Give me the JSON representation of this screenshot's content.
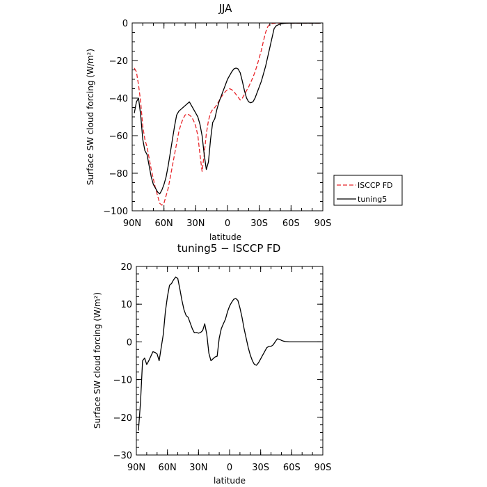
{
  "chart_data": [
    {
      "type": "line",
      "title": "JJA",
      "xlabel": "latitude",
      "ylabel": "Surface SW cloud forcing (W/m²)",
      "xlim": [
        90,
        -90
      ],
      "ylim": [
        -100,
        0
      ],
      "x_ticks": [
        90,
        60,
        30,
        0,
        -30,
        -60,
        -90
      ],
      "x_tick_labels": [
        "90N",
        "60N",
        "30N",
        "0",
        "30S",
        "60S",
        "90S"
      ],
      "y_ticks": [
        0,
        -20,
        -40,
        -60,
        -80,
        -100
      ],
      "y_tick_labels": [
        "0",
        "−20",
        "−40",
        "−60",
        "−80",
        "−100"
      ],
      "legend_position": "right",
      "series": [
        {
          "name": "ISCCP FD",
          "color": "#e8262b",
          "dash": "dashed",
          "x": [
            88,
            86,
            84,
            82,
            80,
            78,
            76,
            74,
            72,
            70,
            68,
            66,
            64,
            62,
            60,
            58,
            56,
            54,
            52,
            50,
            48,
            46,
            44,
            42,
            40,
            38,
            36,
            34,
            32,
            30,
            28,
            26,
            24,
            22,
            20,
            18,
            16,
            14,
            12,
            10,
            8,
            6,
            4,
            2,
            0,
            -2,
            -4,
            -6,
            -8,
            -10,
            -12,
            -14,
            -16,
            -18,
            -20,
            -22,
            -24,
            -26,
            -28,
            -30,
            -32,
            -34,
            -36,
            -38,
            -40,
            -42,
            -44,
            -46,
            -48,
            -50,
            -52,
            -54,
            -56,
            -58,
            -60,
            -62,
            -64,
            -66,
            -68,
            -70,
            -72,
            -74,
            -76,
            -78,
            -80,
            -82,
            -84,
            -86,
            -88
          ],
          "values": [
            -24,
            -26,
            -33,
            -42,
            -55,
            -62,
            -66,
            -72,
            -78,
            -83,
            -88,
            -92,
            -96,
            -97,
            -96,
            -92,
            -88,
            -82,
            -76,
            -70,
            -64,
            -58,
            -54,
            -51,
            -49,
            -48.5,
            -49,
            -50,
            -52,
            -55,
            -60,
            -70,
            -79,
            -70,
            -59,
            -52,
            -48,
            -46,
            -45,
            -43.5,
            -41.5,
            -39.5,
            -38,
            -36.5,
            -35.5,
            -35,
            -35.5,
            -36.5,
            -38,
            -39.5,
            -41,
            -40,
            -38,
            -36,
            -34,
            -31.5,
            -29,
            -26,
            -22.5,
            -18.5,
            -14.5,
            -9.5,
            -5,
            -2,
            -0.7,
            -0.3,
            -0.2,
            -0.1,
            -0.1,
            -0.1,
            -0.1,
            -0.1,
            -0.1,
            -0.1,
            -0.1,
            -0.1,
            -0.1,
            -0.1,
            -0.1,
            -0.1,
            -0.1,
            -0.1,
            -0.1,
            -0.1,
            -0.1,
            -0.1,
            -0.1,
            -0.1,
            -0.1
          ]
        },
        {
          "name": "tuning5",
          "color": "#000000",
          "dash": "solid",
          "x": [
            88,
            86,
            84,
            82,
            80,
            78,
            76,
            74,
            72,
            70,
            68,
            66,
            64,
            62,
            60,
            58,
            56,
            54,
            52,
            50,
            48,
            46,
            44,
            42,
            40,
            38,
            36,
            34,
            32,
            30,
            28,
            26,
            24,
            22,
            20,
            18,
            16,
            14,
            12,
            10,
            8,
            6,
            4,
            2,
            0,
            -2,
            -4,
            -6,
            -8,
            -10,
            -12,
            -14,
            -16,
            -18,
            -20,
            -22,
            -24,
            -26,
            -28,
            -30,
            -32,
            -34,
            -36,
            -38,
            -40,
            -42,
            -44,
            -46,
            -48,
            -50,
            -52,
            -54,
            -56,
            -58,
            -60,
            -62,
            -64,
            -66,
            -68,
            -70,
            -72,
            -74,
            -76,
            -78,
            -80,
            -82,
            -84,
            -86,
            -88
          ],
          "values": [
            -48,
            -42,
            -40,
            -49,
            -62,
            -68,
            -70,
            -76,
            -82,
            -86,
            -88,
            -90,
            -91,
            -89,
            -86,
            -82,
            -76,
            -69,
            -62,
            -55,
            -49,
            -47,
            -46,
            -45,
            -44,
            -43,
            -42,
            -44,
            -46,
            -48,
            -50,
            -54,
            -60,
            -70,
            -78,
            -74,
            -62,
            -53,
            -51,
            -46,
            -42,
            -39,
            -36,
            -33,
            -30,
            -28,
            -26,
            -24.5,
            -24,
            -24.5,
            -26.5,
            -31,
            -36,
            -40,
            -42,
            -42.5,
            -42,
            -40,
            -37,
            -34,
            -31,
            -27,
            -23,
            -18,
            -13,
            -8,
            -3,
            -1.5,
            -1,
            -0.5,
            -0.3,
            -0.2,
            -0.1,
            -0.1,
            -0.1,
            -0.1,
            -0.1,
            -0.1,
            -0.1,
            -0.1,
            -0.1,
            -0.1,
            -0.1,
            -0.1,
            -0.1,
            -0.1,
            -0.1,
            -0.1,
            -0.1
          ]
        }
      ]
    },
    {
      "type": "line",
      "title": "tuning5 − ISCCP FD",
      "xlabel": "latitude",
      "ylabel": "Surface SW cloud forcing (W/m²)",
      "xlim": [
        90,
        -90
      ],
      "ylim": [
        -30,
        20
      ],
      "x_ticks": [
        90,
        60,
        30,
        0,
        -30,
        -60,
        -90
      ],
      "x_tick_labels": [
        "90N",
        "60N",
        "30N",
        "0",
        "30S",
        "60S",
        "90S"
      ],
      "y_ticks": [
        20,
        10,
        0,
        -10,
        -20,
        -30
      ],
      "y_tick_labels": [
        "20",
        "10",
        "0",
        "−10",
        "−20",
        "−30"
      ],
      "series": [
        {
          "color": "#000000",
          "dash": "solid",
          "x": [
            88,
            86,
            84,
            82,
            80,
            78,
            76,
            74,
            72,
            70,
            68,
            66,
            64,
            62,
            60,
            58,
            56,
            54,
            52,
            50,
            48,
            46,
            44,
            42,
            40,
            38,
            36,
            34,
            32,
            30,
            28,
            26,
            24,
            22,
            20,
            18,
            16,
            14,
            12,
            10,
            8,
            6,
            4,
            2,
            0,
            -2,
            -4,
            -6,
            -8,
            -10,
            -12,
            -14,
            -16,
            -18,
            -20,
            -22,
            -24,
            -26,
            -28,
            -30,
            -32,
            -34,
            -36,
            -38,
            -40,
            -42,
            -44,
            -46,
            -48,
            -50,
            -52,
            -54,
            -56,
            -58,
            -60,
            -62,
            -64,
            -66,
            -68,
            -70,
            -72,
            -74,
            -76,
            -78,
            -80,
            -82,
            -84,
            -86,
            -88
          ],
          "values": [
            -23.5,
            -16,
            -5,
            -4.3,
            -6,
            -5,
            -3.8,
            -2.6,
            -2.8,
            -3.2,
            -5,
            -1.5,
            2,
            8,
            12,
            15,
            15.5,
            16.5,
            17.2,
            16.8,
            14,
            11,
            8.5,
            7,
            6.5,
            5,
            3.5,
            2.4,
            2.5,
            2.3,
            2.5,
            3,
            4.8,
            2,
            -3,
            -5,
            -4.5,
            -4,
            -3.8,
            1,
            3.5,
            4.8,
            6,
            8,
            9.5,
            10.5,
            11.3,
            11.5,
            11,
            9,
            6.5,
            3.5,
            1,
            -1.5,
            -3.5,
            -5,
            -6,
            -6.2,
            -5.5,
            -4.5,
            -3.5,
            -2.5,
            -1.5,
            -1.2,
            -1.2,
            -0.8,
            0,
            0.8,
            0.7,
            0.4,
            0.2,
            0.1,
            0.05,
            0,
            0,
            0,
            0,
            0,
            0,
            0,
            0,
            0,
            0,
            0,
            0,
            0,
            0,
            0,
            0
          ]
        }
      ]
    }
  ]
}
